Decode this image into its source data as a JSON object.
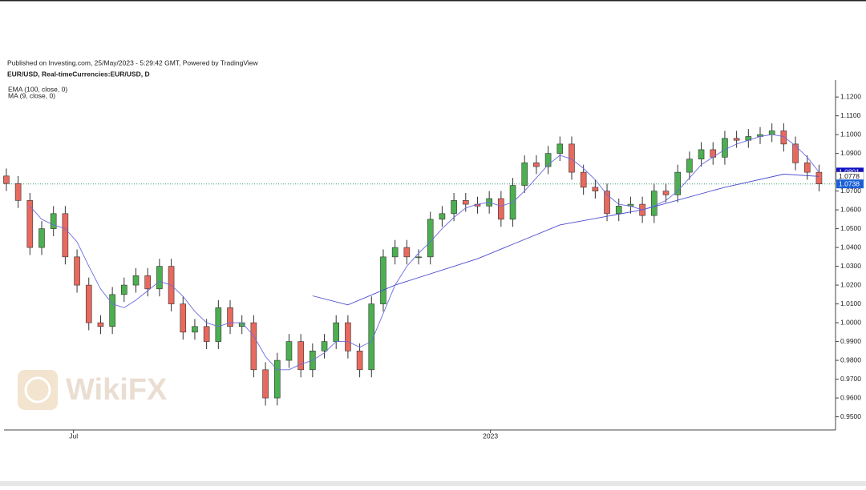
{
  "chart_data": {
    "type": "candlestick",
    "header": "Published on Investing.com, 25/May/2023 - 5:29:42 GMT, Powered by TradingView",
    "title": "EUR/USD, Real-timeCurrencies:EUR/USD, D",
    "watermark": "WikiFX",
    "up_color": "#4caf50",
    "down_color": "#e8695e",
    "open": [
      1.078,
      1.074,
      1.065,
      1.04,
      1.05,
      1.058,
      1.035,
      1.02,
      1.0,
      0.998,
      1.015,
      1.02,
      1.025,
      1.018,
      1.03,
      1.01,
      0.995,
      0.998,
      0.99,
      1.008,
      0.998,
      1.0,
      0.975,
      0.96,
      0.98,
      0.99,
      0.975,
      0.985,
      0.99,
      1.0,
      0.985,
      0.975,
      1.01,
      1.035,
      1.04,
      1.035,
      1.035,
      1.055,
      1.058,
      1.065,
      1.063,
      1.062,
      1.066,
      1.055,
      1.073,
      1.085,
      1.083,
      1.09,
      1.095,
      1.08,
      1.072,
      1.07,
      1.058,
      1.062,
      1.063,
      1.057,
      1.07,
      1.068,
      1.08,
      1.087,
      1.092,
      1.088,
      1.098,
      1.097,
      1.099,
      1.1,
      1.102,
      1.095,
      1.085,
      1.08
    ],
    "high": [
      1.082,
      1.078,
      1.069,
      1.054,
      1.062,
      1.062,
      1.039,
      1.024,
      1.004,
      1.019,
      1.024,
      1.029,
      1.029,
      1.034,
      1.034,
      1.014,
      1.002,
      1.002,
      1.012,
      1.012,
      1.004,
      1.004,
      0.979,
      0.984,
      0.994,
      0.994,
      0.989,
      0.994,
      1.004,
      1.004,
      0.989,
      1.014,
      1.039,
      1.044,
      1.044,
      1.039,
      1.059,
      1.062,
      1.069,
      1.069,
      1.067,
      1.07,
      1.07,
      1.077,
      1.089,
      1.089,
      1.094,
      1.099,
      1.099,
      1.084,
      1.076,
      1.074,
      1.066,
      1.067,
      1.067,
      1.074,
      1.074,
      1.084,
      1.091,
      1.096,
      1.096,
      1.102,
      1.102,
      1.103,
      1.104,
      1.106,
      1.106,
      1.099,
      1.089,
      1.084
    ],
    "low": [
      1.07,
      1.061,
      1.036,
      1.036,
      1.046,
      1.031,
      1.016,
      0.996,
      0.994,
      0.994,
      1.011,
      1.016,
      1.014,
      1.014,
      1.006,
      0.991,
      0.991,
      0.986,
      0.986,
      0.994,
      0.994,
      0.971,
      0.956,
      0.956,
      0.976,
      0.971,
      0.971,
      0.981,
      0.986,
      0.981,
      0.971,
      0.971,
      1.006,
      1.031,
      1.031,
      1.031,
      1.031,
      1.051,
      1.054,
      1.059,
      1.058,
      1.058,
      1.051,
      1.051,
      1.069,
      1.079,
      1.079,
      1.086,
      1.076,
      1.068,
      1.066,
      1.054,
      1.054,
      1.058,
      1.053,
      1.053,
      1.064,
      1.064,
      1.076,
      1.083,
      1.084,
      1.084,
      1.093,
      1.093,
      1.095,
      1.096,
      1.091,
      1.081,
      1.076,
      1.0698
    ],
    "close": [
      1.074,
      1.065,
      1.04,
      1.05,
      1.058,
      1.035,
      1.02,
      1.0,
      0.998,
      1.015,
      1.02,
      1.025,
      1.018,
      1.03,
      1.01,
      0.995,
      0.998,
      0.99,
      1.008,
      0.998,
      1.0,
      0.975,
      0.96,
      0.98,
      0.99,
      0.975,
      0.985,
      0.99,
      1.0,
      0.985,
      0.975,
      1.01,
      1.035,
      1.04,
      1.035,
      1.035,
      1.055,
      1.058,
      1.065,
      1.063,
      1.062,
      1.066,
      1.055,
      1.073,
      1.085,
      1.083,
      1.09,
      1.095,
      1.08,
      1.072,
      1.07,
      1.058,
      1.062,
      1.063,
      1.057,
      1.07,
      1.068,
      1.08,
      1.087,
      1.092,
      1.088,
      1.098,
      1.097,
      1.099,
      1.1,
      1.102,
      1.095,
      1.085,
      1.08,
      1.0738
    ],
    "series": [
      {
        "name": "EMA (100, close, 0)",
        "color": "#4a4ad0",
        "x": [
          26,
          29,
          33,
          40,
          47,
          54,
          61,
          66,
          69
        ],
        "values": [
          1.0143,
          1.0095,
          1.02,
          1.034,
          1.052,
          1.06,
          1.072,
          1.079,
          1.0778
        ]
      },
      {
        "name": "MA (9, close, 0)",
        "color": "#6a6ae0",
        "values": [
          null,
          null,
          1.062,
          1.055,
          1.052,
          1.05,
          1.043,
          1.03,
          1.018,
          1.01,
          1.008,
          1.012,
          1.017,
          1.022,
          1.02,
          1.014,
          1.006,
          1.0,
          0.998,
          1.0,
          1.0,
          0.993,
          0.982,
          0.975,
          0.975,
          0.978,
          0.98,
          0.984,
          0.99,
          0.99,
          0.987,
          0.99,
          1.005,
          1.02,
          1.03,
          1.037,
          1.043,
          1.05,
          1.056,
          1.061,
          1.063,
          1.064,
          1.062,
          1.064,
          1.07,
          1.077,
          1.084,
          1.089,
          1.087,
          1.082,
          1.076,
          1.068,
          1.063,
          1.062,
          1.06,
          1.062,
          1.065,
          1.07,
          1.077,
          1.084,
          1.088,
          1.092,
          1.095,
          1.097,
          1.099,
          1.1,
          1.099,
          1.094,
          1.088,
          1.0801
        ]
      }
    ],
    "price_labels": [
      {
        "value": 1.0801,
        "color": "#1010c0"
      },
      {
        "value": 1.0778,
        "color": "#ffffff"
      },
      {
        "value": 1.0738,
        "color": "#1a5fd6"
      }
    ],
    "xlim": [
      -0.2,
      70.4
    ],
    "xticks": [
      {
        "value": 5.7,
        "label": "Jul"
      },
      {
        "value": 41.1,
        "label": "2023"
      }
    ],
    "ylim": [
      0.943,
      1.129
    ],
    "yticks": [
      {
        "value": 0.95,
        "label": "0.9500"
      },
      {
        "value": 0.96,
        "label": "0.9600"
      },
      {
        "value": 0.97,
        "label": "0.9700"
      },
      {
        "value": 0.98,
        "label": "0.9800"
      },
      {
        "value": 0.99,
        "label": "0.9900"
      },
      {
        "value": 1.0,
        "label": "1.0000"
      },
      {
        "value": 1.01,
        "label": "1.0100"
      },
      {
        "value": 1.02,
        "label": "1.0200"
      },
      {
        "value": 1.03,
        "label": "1.0300"
      },
      {
        "value": 1.04,
        "label": "1.0400"
      },
      {
        "value": 1.05,
        "label": "1.0500"
      },
      {
        "value": 1.06,
        "label": "1.0600"
      },
      {
        "value": 1.07,
        "label": "1.0700"
      },
      {
        "value": 1.08,
        "label": "1.0800"
      },
      {
        "value": 1.09,
        "label": "1.0900"
      },
      {
        "value": 1.1,
        "label": "1.1000"
      },
      {
        "value": 1.11,
        "label": "1.1100"
      },
      {
        "value": 1.12,
        "label": "1.1200"
      }
    ],
    "grid": false
  }
}
